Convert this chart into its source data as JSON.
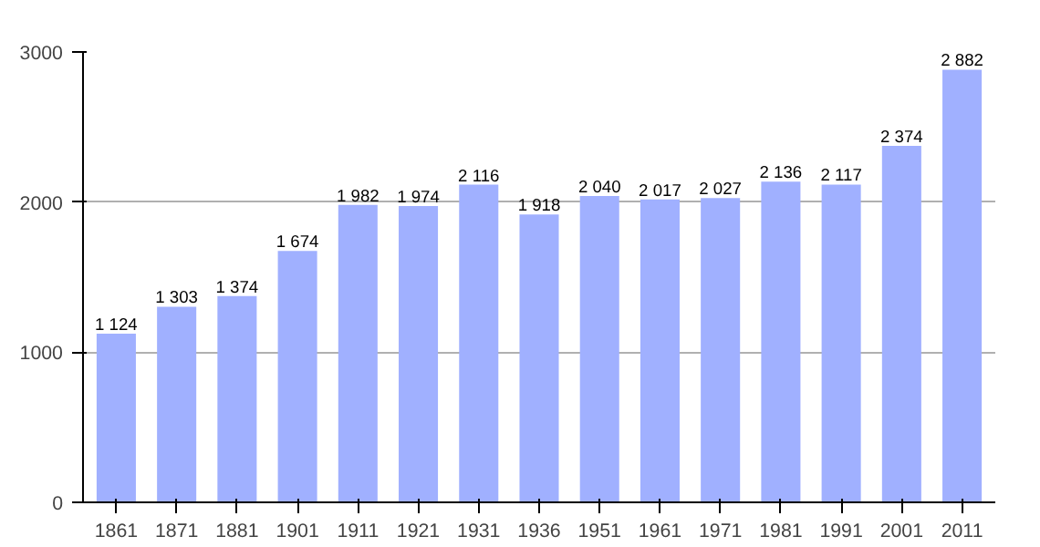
{
  "chart_data": {
    "type": "bar",
    "categories": [
      "1861",
      "1871",
      "1881",
      "1901",
      "1911",
      "1921",
      "1931",
      "1936",
      "1951",
      "1961",
      "1971",
      "1981",
      "1991",
      "2001",
      "2011"
    ],
    "values": [
      1124,
      1303,
      1374,
      1674,
      1982,
      1974,
      2116,
      1918,
      2040,
      2017,
      2027,
      2136,
      2117,
      2374,
      2882
    ],
    "value_labels": [
      "1 124",
      "1 303",
      "1 374",
      "1 674",
      "1 982",
      "1 974",
      "2 116",
      "1 918",
      "2 040",
      "2 017",
      "2 027",
      "2 136",
      "2 117",
      "2 374",
      "2 882"
    ],
    "color": "#a0b0ff",
    "ylim": [
      0,
      3000
    ],
    "yticks": [
      0,
      1000,
      2000,
      3000
    ],
    "grid": "y"
  }
}
